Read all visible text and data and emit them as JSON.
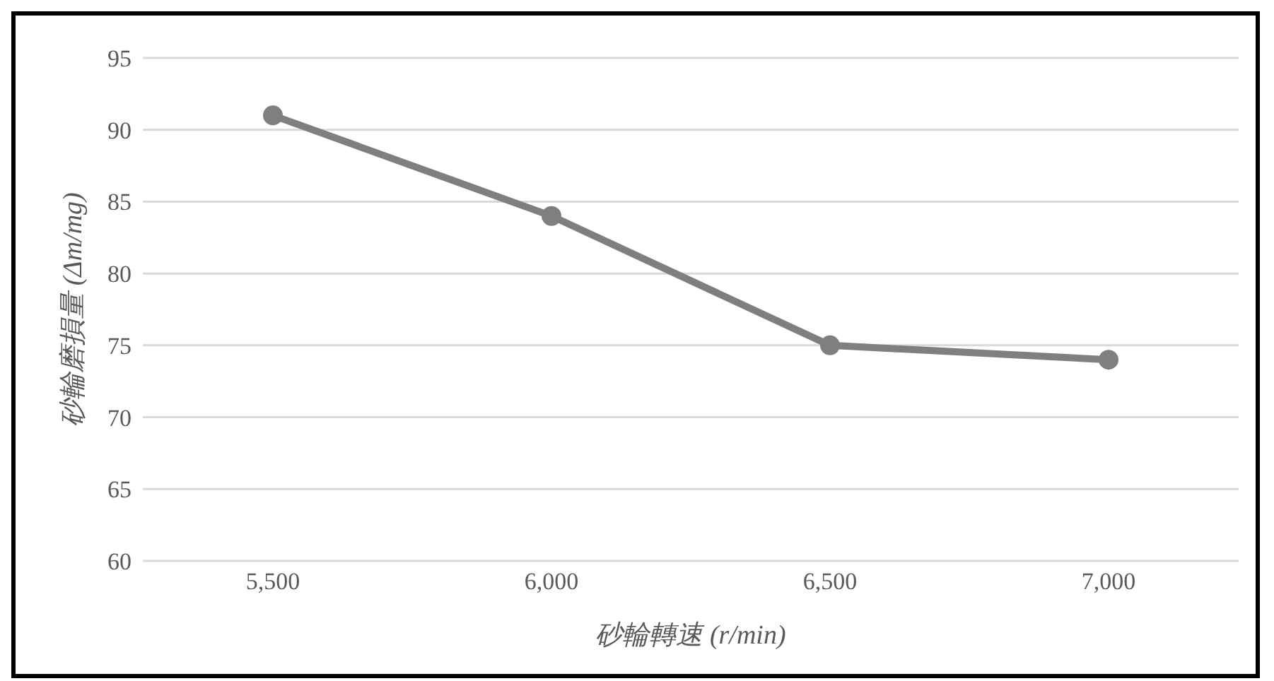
{
  "chart_data": {
    "type": "line",
    "xlabel": "砂輪轉速 (r/min)",
    "ylabel": "砂輪磨損量 (Δm/mg)",
    "categories": [
      "5,500",
      "6,000",
      "6,500",
      "7,000"
    ],
    "series": [
      {
        "color": "#7f7f7f",
        "values": [
          91,
          84,
          75,
          74
        ]
      }
    ],
    "ylim": [
      60,
      95
    ],
    "yticks": [
      60,
      65,
      70,
      75,
      80,
      85,
      90,
      95
    ],
    "grid": "y",
    "marker": "circle",
    "line_style": "solid",
    "legend": false
  }
}
